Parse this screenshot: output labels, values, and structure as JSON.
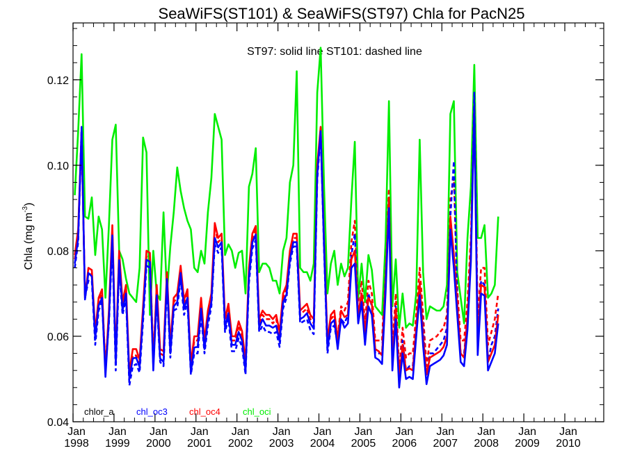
{
  "chart_data": {
    "type": "line",
    "title": "SeaWiFS(ST101) & SeaWiFS(ST97)  Chla for PacN25",
    "annotation": "ST97: solid line   ST101: dashed line",
    "ylabel_main": "Chla (mg m",
    "ylabel_sup": "-3",
    "ylabel_close": ")",
    "ylim": [
      0.04,
      0.1333
    ],
    "xlim": [
      1998.0,
      2010.95
    ],
    "yticks": [
      "0.04",
      "0.06",
      "0.08",
      "0.10",
      "0.12"
    ],
    "xtick_month": "Jan",
    "xtick_years": [
      "1998",
      "1999",
      "2000",
      "2001",
      "2002",
      "2003",
      "2004",
      "2005",
      "2006",
      "2007",
      "2008",
      "2009",
      "2010"
    ],
    "grid": false,
    "legend_position": "bottom-left",
    "start_year": 1998,
    "series": [
      {
        "name": "chlor_a",
        "color": "#000000",
        "style": "solid",
        "values": []
      },
      {
        "name": "chl_oc3",
        "color": "#0000ff",
        "style": "solid",
        "values": [
          0.077,
          0.083,
          0.1085,
          0.0686,
          0.0748,
          0.074,
          0.0595,
          0.0672,
          0.069,
          0.0505,
          0.064,
          0.0836,
          0.0535,
          0.0778,
          0.066,
          0.07,
          0.05,
          0.0548,
          0.055,
          0.0528,
          0.065,
          0.0779,
          0.0774,
          0.052,
          0.0696,
          0.0548,
          0.054,
          0.0734,
          0.056,
          0.067,
          0.068,
          0.0748,
          0.0665,
          0.069,
          0.0515,
          0.0574,
          0.0575,
          0.0665,
          0.057,
          0.064,
          0.068,
          0.083,
          0.0808,
          0.082,
          0.062,
          0.0654,
          0.058,
          0.058,
          0.061,
          0.059,
          0.0518,
          0.074,
          0.082,
          0.0838,
          0.062,
          0.064,
          0.0625,
          0.0625,
          0.062,
          0.0625,
          0.0588,
          0.068,
          0.0698,
          0.078,
          0.082,
          0.082,
          0.064,
          0.0645,
          0.0654,
          0.063,
          0.0618,
          0.0978,
          0.108,
          0.0808,
          0.057,
          0.063,
          0.0638,
          0.057,
          0.064,
          0.062,
          0.063,
          0.076,
          0.077,
          0.063,
          0.068,
          0.058,
          0.067,
          0.065,
          0.055,
          0.0545,
          0.0535,
          0.07,
          0.09,
          0.052,
          0.064,
          0.048,
          0.056,
          0.05,
          0.0505,
          0.05,
          0.06,
          0.0696,
          0.0578,
          0.0488,
          0.053,
          0.0535,
          0.054,
          0.0545,
          0.0555,
          0.058,
          0.085,
          0.076,
          0.065,
          0.054,
          0.053,
          0.0615,
          0.0775,
          0.114,
          0.0556,
          0.07,
          0.0695,
          0.052,
          0.054,
          0.056,
          0.063
        ]
      },
      {
        "name": "chl_oc4",
        "color": "#ff0000",
        "style": "solid",
        "values": [
          0.079,
          0.085,
          0.108,
          0.069,
          0.076,
          0.0755,
          0.061,
          0.069,
          0.071,
          0.052,
          0.066,
          0.086,
          0.055,
          0.08,
          0.068,
          0.072,
          0.0515,
          0.057,
          0.057,
          0.0545,
          0.067,
          0.08,
          0.0795,
          0.054,
          0.072,
          0.057,
          0.0565,
          0.075,
          0.058,
          0.069,
          0.07,
          0.0765,
          0.0685,
          0.071,
          0.0535,
          0.06,
          0.06,
          0.069,
          0.059,
          0.066,
          0.07,
          0.0865,
          0.083,
          0.084,
          0.064,
          0.0676,
          0.06,
          0.06,
          0.0635,
          0.0612,
          0.054,
          0.076,
          0.084,
          0.0858,
          0.064,
          0.066,
          0.065,
          0.065,
          0.064,
          0.065,
          0.061,
          0.07,
          0.072,
          0.08,
          0.084,
          0.084,
          0.066,
          0.0668,
          0.0676,
          0.065,
          0.064,
          0.1,
          0.109,
          0.0825,
          0.059,
          0.065,
          0.066,
          0.059,
          0.066,
          0.0645,
          0.065,
          0.078,
          0.08,
          0.065,
          0.07,
          0.06,
          0.069,
          0.0675,
          0.057,
          0.0565,
          0.0555,
          0.0725,
          0.0925,
          0.0545,
          0.0665,
          0.05,
          0.058,
          0.052,
          0.0525,
          0.052,
          0.062,
          0.0725,
          0.06,
          0.051,
          0.055,
          0.0555,
          0.056,
          0.0565,
          0.0575,
          0.06,
          0.088,
          0.079,
          0.0675,
          0.056,
          0.055,
          0.064,
          0.08,
          0.114,
          0.058,
          0.072,
          0.0715,
          0.054,
          0.056,
          0.058,
          0.065
        ]
      },
      {
        "name": "chl_oci",
        "color": "#00ee00",
        "style": "solid",
        "values": [
          0.093,
          0.108,
          0.126,
          0.088,
          0.0875,
          0.0925,
          0.079,
          0.088,
          0.085,
          0.069,
          0.086,
          0.106,
          0.1095,
          0.08,
          0.078,
          0.0735,
          0.07,
          0.069,
          0.068,
          0.076,
          0.1065,
          0.103,
          0.065,
          0.08,
          0.07,
          0.0685,
          0.089,
          0.07,
          0.081,
          0.089,
          0.0995,
          0.094,
          0.09,
          0.087,
          0.085,
          0.076,
          0.075,
          0.08,
          0.077,
          0.089,
          0.097,
          0.112,
          0.109,
          0.106,
          0.079,
          0.0815,
          0.08,
          0.076,
          0.0795,
          0.08,
          0.07,
          0.095,
          0.098,
          0.104,
          0.075,
          0.077,
          0.077,
          0.076,
          0.073,
          0.073,
          0.07,
          0.08,
          0.083,
          0.096,
          0.1,
          0.122,
          0.076,
          0.075,
          0.075,
          0.073,
          0.077,
          0.117,
          0.1275,
          0.095,
          0.07,
          0.077,
          0.08,
          0.072,
          0.077,
          0.074,
          0.076,
          0.092,
          0.1055,
          0.069,
          0.077,
          0.068,
          0.079,
          0.0755,
          0.067,
          0.066,
          0.065,
          0.082,
          0.115,
          0.067,
          0.078,
          0.062,
          0.07,
          0.062,
          0.063,
          0.0625,
          0.07,
          0.106,
          0.075,
          0.064,
          0.067,
          0.0665,
          0.066,
          0.066,
          0.067,
          0.072,
          0.112,
          0.115,
          0.075,
          0.069,
          0.063,
          0.083,
          0.095,
          0.1235,
          0.083,
          0.083,
          0.086,
          0.069,
          0.07,
          0.072,
          0.088
        ]
      },
      {
        "name": "chl_oc3 (ST101)",
        "color": "#0000ff",
        "style": "dashed",
        "values": [
          0.076,
          0.082,
          0.109,
          0.069,
          0.073,
          0.073,
          0.058,
          0.066,
          0.068,
          0.052,
          0.063,
          0.082,
          0.052,
          0.076,
          0.065,
          0.069,
          0.0485,
          0.053,
          0.0535,
          0.0515,
          0.0635,
          0.0765,
          0.076,
          0.053,
          0.0685,
          0.054,
          0.053,
          0.072,
          0.055,
          0.066,
          0.0665,
          0.0735,
          0.065,
          0.068,
          0.051,
          0.056,
          0.056,
          0.065,
          0.056,
          0.0625,
          0.067,
          0.0815,
          0.0795,
          0.0808,
          0.061,
          0.064,
          0.0565,
          0.0565,
          0.0595,
          0.0575,
          0.051,
          0.0725,
          0.0805,
          0.0825,
          0.061,
          0.0625,
          0.061,
          0.061,
          0.0605,
          0.061,
          0.0575,
          0.0665,
          0.069,
          0.077,
          0.081,
          0.081,
          0.063,
          0.0635,
          0.064,
          0.0615,
          0.0605,
          0.0965,
          0.1075,
          0.08,
          0.056,
          0.062,
          0.0625,
          0.058,
          0.064,
          0.063,
          0.065,
          0.079,
          0.084,
          0.065,
          0.07,
          0.06,
          0.07,
          0.067,
          0.056,
          0.056,
          0.056,
          0.074,
          0.092,
          0.054,
          0.067,
          0.049,
          0.059,
          0.052,
          0.053,
          0.053,
          0.062,
          0.072,
          0.062,
          0.05,
          0.056,
          0.056,
          0.057,
          0.058,
          0.059,
          0.062,
          0.088,
          0.101,
          0.068,
          0.056,
          0.056,
          0.064,
          0.08,
          0.117,
          0.06,
          0.073,
          0.072,
          0.054,
          0.058,
          0.06,
          0.0665
        ]
      },
      {
        "name": "chl_oc4 (ST101)",
        "color": "#ff0000",
        "style": "dashed",
        "values": [
          0.078,
          0.084,
          0.107,
          0.0695,
          0.0745,
          0.0745,
          0.06,
          0.068,
          0.07,
          0.053,
          0.065,
          0.085,
          0.054,
          0.079,
          0.067,
          0.071,
          0.05,
          0.0555,
          0.0555,
          0.053,
          0.0655,
          0.079,
          0.0785,
          0.055,
          0.071,
          0.056,
          0.0555,
          0.074,
          0.057,
          0.068,
          0.069,
          0.0755,
          0.0675,
          0.07,
          0.053,
          0.059,
          0.059,
          0.068,
          0.058,
          0.065,
          0.069,
          0.0855,
          0.082,
          0.083,
          0.063,
          0.0665,
          0.059,
          0.059,
          0.0625,
          0.06,
          0.053,
          0.075,
          0.083,
          0.0848,
          0.063,
          0.065,
          0.064,
          0.064,
          0.063,
          0.064,
          0.06,
          0.069,
          0.071,
          0.079,
          0.083,
          0.083,
          0.065,
          0.0658,
          0.0665,
          0.064,
          0.063,
          0.099,
          0.1085,
          0.082,
          0.058,
          0.064,
          0.065,
          0.06,
          0.067,
          0.066,
          0.068,
          0.082,
          0.087,
          0.068,
          0.073,
          0.063,
          0.073,
          0.07,
          0.059,
          0.059,
          0.059,
          0.077,
          0.0945,
          0.057,
          0.07,
          0.052,
          0.062,
          0.055,
          0.056,
          0.056,
          0.065,
          0.076,
          0.065,
          0.053,
          0.059,
          0.0595,
          0.06,
          0.061,
          0.062,
          0.065,
          0.092,
          0.097,
          0.071,
          0.059,
          0.059,
          0.068,
          0.083,
          0.116,
          0.064,
          0.076,
          0.076,
          0.058,
          0.061,
          0.064,
          0.07
        ]
      },
      {
        "name": "chl_oci (ST101)",
        "color": "#00ee00",
        "style": "dashed",
        "values": [
          0.092,
          0.107,
          0.1255,
          0.0885,
          0.087,
          0.092,
          0.078,
          0.087,
          0.0845,
          0.07,
          0.085,
          0.104,
          0.1085,
          0.08,
          0.077,
          0.0725,
          0.069,
          0.068,
          0.067,
          0.075,
          0.105,
          0.102,
          0.0645,
          0.079,
          0.069,
          0.068,
          0.088,
          0.069,
          0.08,
          0.088,
          0.0985,
          0.093,
          0.089,
          0.086,
          0.084,
          0.075,
          0.074,
          0.079,
          0.076,
          0.088,
          0.096,
          0.111,
          0.108,
          0.105,
          0.078,
          0.0805,
          0.079,
          0.075,
          0.0785,
          0.079,
          0.069,
          0.094,
          0.097,
          0.105,
          0.074,
          0.076,
          0.076,
          0.075,
          0.072,
          0.072,
          0.069,
          0.079,
          0.082,
          0.097,
          0.105,
          0.12,
          0.075,
          0.0745,
          0.0745,
          0.0725,
          0.0765,
          0.1175,
          0.1285,
          0.096,
          0.071,
          0.078,
          0.081,
          0.074,
          0.08,
          0.078,
          0.08,
          0.095,
          0.1095,
          0.072,
          0.08,
          0.071,
          0.082,
          0.079,
          0.07,
          0.07,
          0.069,
          0.086,
          0.116,
          0.072,
          0.082,
          0.066,
          0.074,
          0.066,
          0.067,
          0.0665,
          0.074,
          0.108,
          0.079,
          0.068,
          0.071,
          0.0705,
          0.07,
          0.07,
          0.071,
          0.076,
          0.114,
          0.1215,
          0.079,
          0.072,
          0.067,
          0.087,
          0.099,
          0.128,
          0.087,
          0.087,
          0.088,
          0.073,
          0.072,
          0.076,
          0.09
        ]
      }
    ],
    "legend": [
      {
        "label": "chlor_a",
        "color": "#000000"
      },
      {
        "label": "chl_oc3",
        "color": "#0000ff"
      },
      {
        "label": "chl_oc4",
        "color": "#ff0000"
      },
      {
        "label": "chl_oci",
        "color": "#00ee00"
      }
    ]
  }
}
